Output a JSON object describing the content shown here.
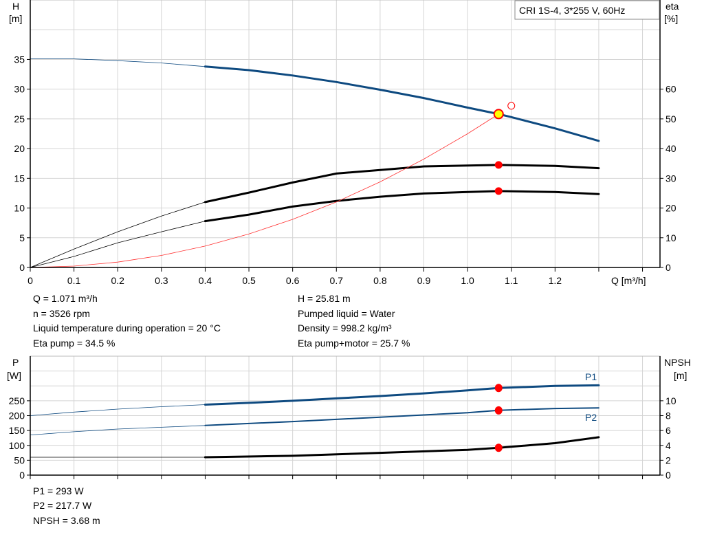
{
  "chart_data": [
    {
      "type": "line",
      "legend_box": "CRI 1S-4, 3*255 V, 60Hz",
      "legend_placement": "top-right",
      "grid": true,
      "xlabel": "Q [m³/h]",
      "ylabel_left": [
        "H",
        "[m]"
      ],
      "ylabel_right": [
        "eta",
        "[%]"
      ],
      "xlim": [
        0,
        1.44
      ],
      "ylim_left": [
        0,
        45
      ],
      "ylim_right": [
        0,
        90
      ],
      "xticks": [
        "0",
        "0.1",
        "0.2",
        "0.3",
        "0.4",
        "0.5",
        "0.6",
        "0.7",
        "0.8",
        "0.9",
        "1.0",
        "1.1",
        "1.2"
      ],
      "yticks_left": [
        "0",
        "5",
        "10",
        "15",
        "20",
        "25",
        "30",
        "35"
      ],
      "yticks_right": [
        "0",
        "10",
        "20",
        "30",
        "40",
        "50",
        "60"
      ],
      "colors": {
        "head": "#0e4a80",
        "eta": "#000000",
        "system": "#ff3030",
        "duty_point": "#ffff00",
        "markers": "#ff0000"
      },
      "series": [
        {
          "axis": "left",
          "color": "#0e4a80",
          "thick_from": 0.4,
          "x": [
            0,
            0.1,
            0.2,
            0.3,
            0.4,
            0.5,
            0.6,
            0.7,
            0.8,
            0.9,
            1.0,
            1.071,
            1.1,
            1.2,
            1.3
          ],
          "y": [
            35.1,
            35.1,
            34.8,
            34.4,
            33.8,
            33.2,
            32.3,
            31.2,
            29.9,
            28.5,
            26.9,
            25.81,
            25.3,
            23.4,
            21.3
          ]
        },
        {
          "axis": "right",
          "color": "#000000",
          "thick_from": 0.4,
          "x": [
            0,
            0.1,
            0.2,
            0.3,
            0.4,
            0.5,
            0.6,
            0.7,
            0.8,
            0.9,
            1.0,
            1.071,
            1.2,
            1.3
          ],
          "y": [
            0,
            6.2,
            12,
            17.3,
            22,
            25.2,
            28.6,
            31.6,
            32.8,
            34,
            34.3,
            34.5,
            34.2,
            33.4
          ]
        },
        {
          "axis": "right",
          "color": "#000000",
          "thick_from": 0.4,
          "x": [
            0,
            0.1,
            0.2,
            0.3,
            0.4,
            0.5,
            0.6,
            0.7,
            0.8,
            0.9,
            1.0,
            1.071,
            1.2,
            1.3
          ],
          "y": [
            0,
            3.7,
            8.3,
            12,
            15.6,
            17.8,
            20.5,
            22.4,
            23.8,
            24.9,
            25.4,
            25.7,
            25.4,
            24.7
          ]
        },
        {
          "axis": "left",
          "color": "#ff3030",
          "thin": true,
          "x": [
            0,
            0.1,
            0.2,
            0.3,
            0.4,
            0.5,
            0.6,
            0.7,
            0.8,
            0.9,
            1.0,
            1.071
          ],
          "y": [
            0,
            0.23,
            0.9,
            2.03,
            3.6,
            5.63,
            8.1,
            11.03,
            14.4,
            18.23,
            22.5,
            25.81
          ]
        }
      ],
      "duty_point": {
        "Q": 1.071,
        "H": 25.81
      },
      "markers": [
        {
          "Q": 1.071,
          "eta": 34.5
        },
        {
          "Q": 1.071,
          "eta": 25.7
        }
      ],
      "open_marker": {
        "Q": 1.1,
        "H": 27.2
      }
    },
    {
      "type": "line",
      "grid": true,
      "ylabel_left": [
        "P",
        "[W]"
      ],
      "ylabel_right": [
        "NPSH",
        "[m]"
      ],
      "xlim": [
        0,
        1.44
      ],
      "ylim_left": [
        0,
        400
      ],
      "ylim_right": [
        0,
        16
      ],
      "yticks_left": [
        "0",
        "50",
        "100",
        "150",
        "200",
        "250"
      ],
      "yticks_right": [
        "0",
        "2",
        "4",
        "6",
        "8",
        "10"
      ],
      "series": [
        {
          "name": "P1",
          "axis": "left",
          "color": "#0e4a80",
          "thick_from": 0.4,
          "x": [
            0,
            0.1,
            0.2,
            0.3,
            0.4,
            0.5,
            0.6,
            0.7,
            0.8,
            0.9,
            1.0,
            1.071,
            1.2,
            1.3
          ],
          "y": [
            200,
            212,
            222,
            230,
            237,
            243,
            250,
            258,
            266,
            275,
            285,
            293,
            300,
            302
          ]
        },
        {
          "name": "P2",
          "axis": "left",
          "color": "#0e4a80",
          "thick_from": 0.4,
          "medium": true,
          "x": [
            0,
            0.1,
            0.2,
            0.3,
            0.4,
            0.6,
            0.8,
            1.0,
            1.071,
            1.2,
            1.3
          ],
          "y": [
            135,
            146,
            155,
            161,
            167,
            180,
            195,
            210,
            217.7,
            224,
            226
          ]
        },
        {
          "axis": "right",
          "color": "#000000",
          "thick_from": 0.4,
          "x": [
            0,
            0.2,
            0.4,
            0.6,
            0.8,
            1.0,
            1.071,
            1.2,
            1.3
          ],
          "y": [
            2.4,
            2.4,
            2.4,
            2.6,
            3.0,
            3.4,
            3.68,
            4.3,
            5.1
          ]
        }
      ],
      "markers": [
        {
          "Q": 1.071,
          "P": 293
        },
        {
          "Q": 1.071,
          "P": 217.7
        },
        {
          "Q": 1.071,
          "NPSH": 3.68
        }
      ]
    }
  ],
  "info_top": {
    "left": [
      "Q = 1.071 m³/h",
      "n = 3526 rpm",
      "Liquid temperature during operation = 20 °C",
      "Eta pump = 34.5 %"
    ],
    "right": [
      "H = 25.81 m",
      "Pumped liquid = Water",
      "Density = 998.2 kg/m³",
      "Eta pump+motor = 25.7 %"
    ]
  },
  "info_bottom": [
    "P1 = 293 W",
    "P2 = 217.7 W",
    "NPSH = 3.68 m"
  ]
}
